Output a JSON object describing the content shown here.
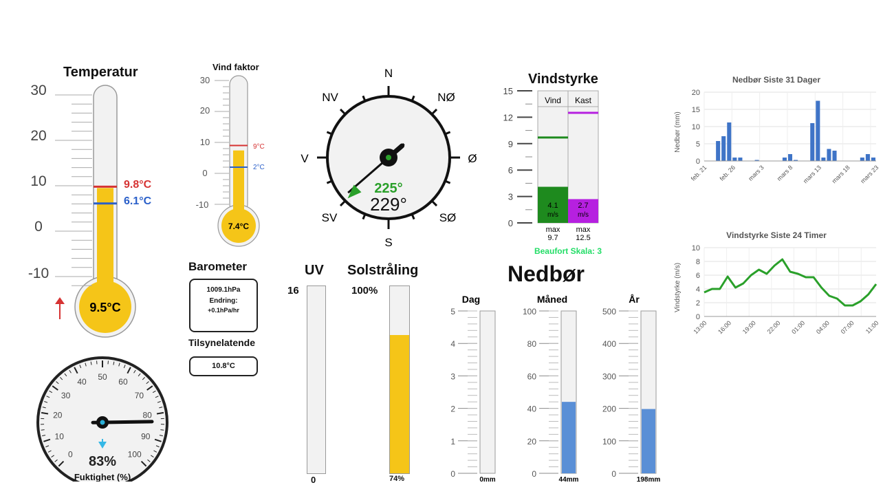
{
  "temperature": {
    "title": "Temperatur",
    "ticks": [
      "30",
      "20",
      "10",
      "0",
      "-10"
    ],
    "max_label": "9.8°C",
    "min_label": "6.1°C",
    "current": "9.5°C",
    "value": 9.5,
    "max_value": 9.8,
    "min_value": 6.1,
    "colors": {
      "fill": "#f5c518",
      "max": "#d63333",
      "min": "#2a5fc9",
      "trend": "#d63333"
    }
  },
  "windchill": {
    "title": "Vind faktor",
    "ticks": [
      "30",
      "20",
      "10",
      "0",
      "-10"
    ],
    "max_label": "9°C",
    "min_label": "2°C",
    "current": "7.4°C",
    "value": 7.4,
    "max_value": 9,
    "min_value": 2
  },
  "barometer": {
    "title": "Barometer",
    "pressure": "1009.1hPa",
    "change_label": "Endring:",
    "change": "+0.1hPa/hr"
  },
  "apparent": {
    "title": "Tilsynelatende",
    "value": "10.8°C"
  },
  "humidity": {
    "title": "Fuktighet (%)",
    "value": "83%",
    "percent": 83,
    "ticks": [
      "0",
      "10",
      "20",
      "30",
      "40",
      "50",
      "60",
      "70",
      "80",
      "90",
      "100"
    ]
  },
  "compass": {
    "directions": {
      "n": "N",
      "ne": "NØ",
      "e": "Ø",
      "se": "SØ",
      "s": "S",
      "sw": "SV",
      "w": "V",
      "nw": "NV"
    },
    "avg_label": "225°",
    "current_label": "229°",
    "avg_deg": 225,
    "current_deg": 229,
    "colors": {
      "avg": "#2aa02a"
    }
  },
  "windspeed": {
    "title": "Vindstyrke",
    "ticks": [
      "15",
      "12",
      "9",
      "6",
      "3",
      "0"
    ],
    "col1_label": "Vind",
    "col2_label": "Kast",
    "wind": 4.1,
    "wind_label": "4.1",
    "wind_max": 9.7,
    "gust": 2.7,
    "gust_label": "2.7",
    "gust_max": 12.5,
    "unit": "m/s",
    "max1_label": "max",
    "max1_value": "9.7",
    "max2_label": "max",
    "max2_value": "12.5",
    "beaufort": "Beaufort Skala: 3",
    "colors": {
      "wind": "#1e8a1e",
      "gust": "#b620e0",
      "beaufort": "#22dd66"
    }
  },
  "uv": {
    "title": "UV",
    "top": "16",
    "bottom": "0",
    "value": 0
  },
  "solar": {
    "title": "Solstråling",
    "top": "100%",
    "bottom": "74%",
    "percent": 74
  },
  "rain": {
    "title": "Nedbør",
    "day": {
      "title": "Dag",
      "ticks": [
        "5",
        "4",
        "3",
        "2",
        "1",
        "0"
      ],
      "bottom": "0mm",
      "value": 0,
      "max": 5
    },
    "month": {
      "title": "Måned",
      "ticks": [
        "100",
        "80",
        "60",
        "40",
        "20",
        "0"
      ],
      "bottom": "44mm",
      "value": 44,
      "max": 100
    },
    "year": {
      "title": "År",
      "ticks": [
        "500",
        "400",
        "300",
        "200",
        "100",
        "0"
      ],
      "bottom": "198mm",
      "value": 198,
      "max": 500
    },
    "colors": {
      "fill": "#5a8fd6"
    }
  },
  "chart_data": [
    {
      "type": "bar",
      "title": "Nedbør Siste 31 Dager",
      "ylabel": "Nedbør (mm)",
      "ylim": [
        0,
        20
      ],
      "yticks": [
        "0",
        "5",
        "10",
        "15",
        "20"
      ],
      "xtick_labels": [
        "feb. 21",
        "feb. 26",
        "mars 3",
        "mars 8",
        "mars 13",
        "mars 18",
        "mars 23"
      ],
      "values": [
        0,
        0,
        5.8,
        7.2,
        11.2,
        1,
        1,
        0,
        0,
        0.3,
        0,
        0,
        0,
        0,
        1,
        2,
        0.3,
        0,
        0,
        11,
        17.5,
        1,
        3.5,
        3,
        0,
        0,
        0,
        0,
        1,
        2,
        1
      ],
      "color": "#3f74c7",
      "grid": true
    },
    {
      "type": "line",
      "title": "Vindstyrke Siste 24 Timer",
      "ylabel": "Vindstyrke (m/s)",
      "ylim": [
        0,
        10
      ],
      "yticks": [
        "0",
        "2",
        "4",
        "6",
        "8",
        "10"
      ],
      "xtick_labels": [
        "13:00",
        "16:00",
        "19:00",
        "22:00",
        "01:00",
        "04:00",
        "07:00",
        "11:00"
      ],
      "values": [
        3.5,
        4,
        4,
        5.8,
        4.2,
        4.8,
        6,
        6.8,
        6.2,
        7.4,
        8.3,
        6.5,
        6.2,
        5.7,
        5.7,
        4.2,
        3,
        2.6,
        1.6,
        1.6,
        2.2,
        3.2,
        4.7
      ],
      "color": "#2aa02a",
      "grid": true
    }
  ]
}
